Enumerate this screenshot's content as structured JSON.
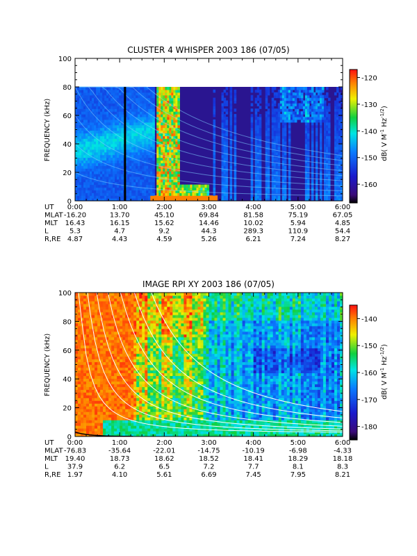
{
  "chart_data": [
    {
      "type": "heatmap",
      "title": "CLUSTER 4 WHISPER 2003 186 (07/05)",
      "ylabel": "FREQUENCY (kHz)",
      "ylim": [
        0,
        100
      ],
      "yticks": [
        "0",
        "20",
        "40",
        "60",
        "80",
        "100"
      ],
      "data_top_khz": 80,
      "xlim_hours": [
        0,
        6
      ],
      "colorbar": {
        "label": "dB( V M-1 Hz-1/2)",
        "range": [
          -167,
          -117
        ],
        "ticks": [
          "-120",
          "-130",
          "-140",
          "-150",
          "-160"
        ],
        "tick_values": [
          -120,
          -130,
          -140,
          -150,
          -160
        ]
      },
      "features": [
        {
          "type": "vertical_line",
          "x_hours": 1.12,
          "color": "#000000"
        },
        {
          "type": "burst",
          "from_hours": 1.85,
          "to_hours": 2.35,
          "top_khz": 80
        }
      ],
      "ephemeris": {
        "row_labels": [
          "UT",
          "MLAT",
          "MLT",
          "L",
          "R,RE"
        ],
        "rows": [
          [
            "0:00",
            "1:00",
            "2:00",
            "3:00",
            "4:00",
            "5:00",
            "6:00"
          ],
          [
            "-16.20",
            "13.70",
            "45.10",
            "69.84",
            "81.58",
            "75.19",
            "67.05"
          ],
          [
            "16.43",
            "16.15",
            "15.62",
            "14.46",
            "10.02",
            "5.94",
            "4.85"
          ],
          [
            "5.3",
            "4.7",
            "9.2",
            "44.3",
            "289.3",
            "110.9",
            "54.4"
          ],
          [
            "4.87",
            "4.43",
            "4.59",
            "5.26",
            "6.21",
            "7.24",
            "8.27"
          ]
        ]
      }
    },
    {
      "type": "heatmap",
      "title": "IMAGE RPI XY 2003 186 (07/05)",
      "ylabel": "FREQUENCY (kHz)",
      "ylim": [
        0,
        100
      ],
      "yticks": [
        "0",
        "20",
        "40",
        "60",
        "80",
        "100"
      ],
      "xlim_hours": [
        0,
        6
      ],
      "colorbar": {
        "label": "dB( V M-1 Hz-1/2)",
        "range": [
          -185,
          -135
        ],
        "ticks": [
          "-140",
          "-150",
          "-160",
          "-170",
          "-180"
        ],
        "tick_values": [
          -140,
          -150,
          -160,
          -170,
          -180
        ]
      },
      "overlay_curves_color": "#ffffff",
      "ephemeris": {
        "row_labels": [
          "UT",
          "MLAT",
          "MLT",
          "L",
          "R,RE"
        ],
        "rows": [
          [
            "0:00",
            "1:00",
            "2:00",
            "3:00",
            "4:00",
            "5:00",
            "6:00"
          ],
          [
            "-76.83",
            "-35.64",
            "-22.01",
            "-14.75",
            "-10.19",
            "-6.98",
            "-4.33"
          ],
          [
            "19.40",
            "18.73",
            "18.62",
            "18.52",
            "18.41",
            "18.29",
            "18.18"
          ],
          [
            "37.9",
            "6.2",
            "6.5",
            "7.2",
            "7.7",
            "8.1",
            "8.3"
          ],
          [
            "1.97",
            "4.10",
            "5.61",
            "6.69",
            "7.45",
            "7.95",
            "8.21"
          ]
        ]
      }
    }
  ]
}
